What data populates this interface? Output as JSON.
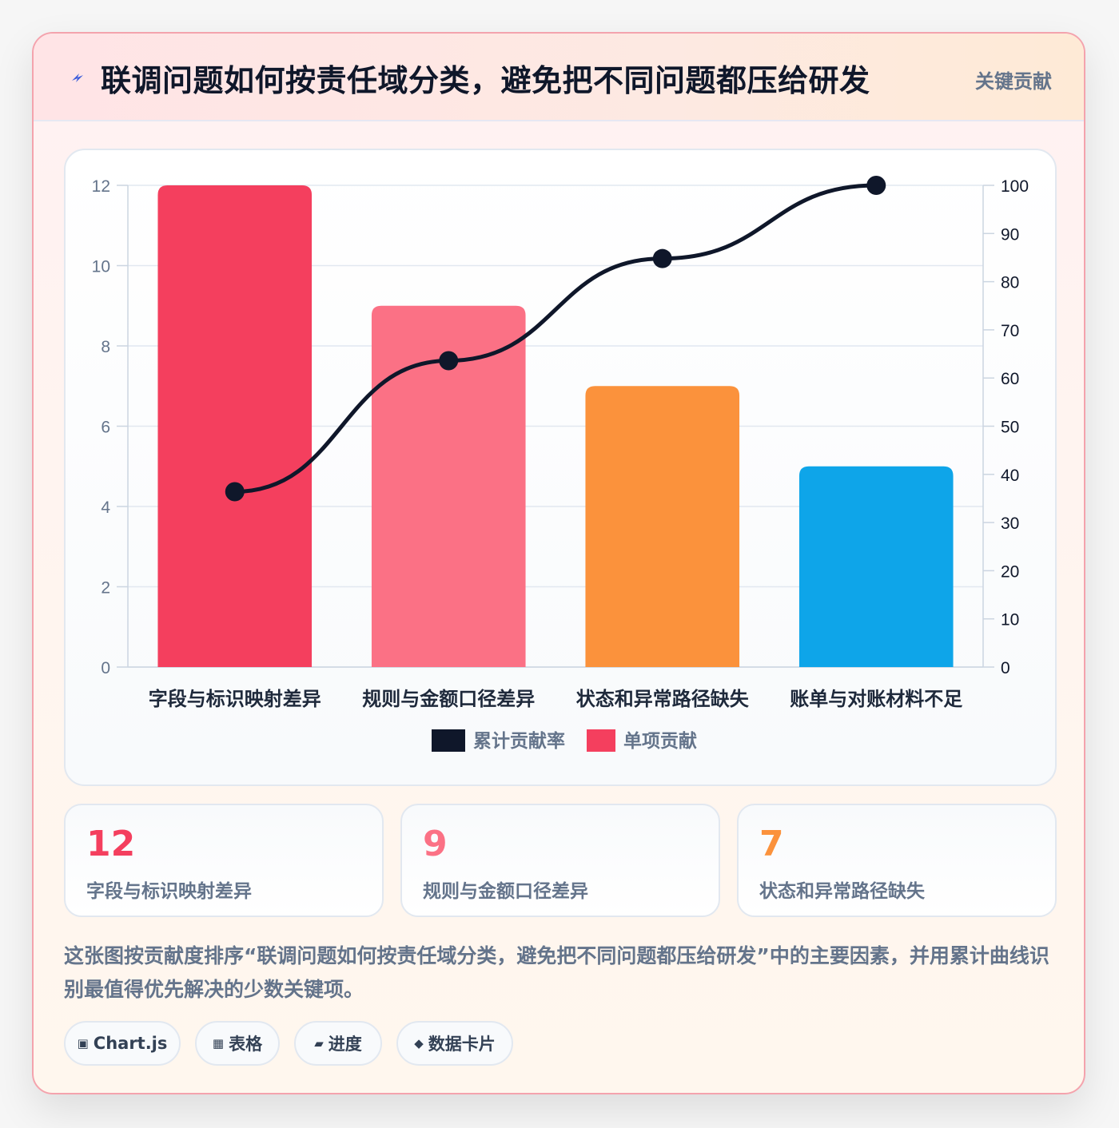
{
  "header": {
    "icon": "lightning-bolt-icon",
    "title": "联调问题如何按责任域分类，避免把不同问题都压给研发",
    "badge": "关键贡献"
  },
  "chart_data": {
    "type": "bar",
    "categories": [
      "字段与标识映射差异",
      "规则与金额口径差异",
      "状态和异常路径缺失",
      "账单与对账材料不足"
    ],
    "series": [
      {
        "name": "单项贡献",
        "type": "bar",
        "axis": "left",
        "values": [
          12,
          9,
          7,
          5
        ],
        "colors": [
          "#f43f5e",
          "#fb7185",
          "#fb923c",
          "#0ea5e9"
        ]
      },
      {
        "name": "累计贡献率",
        "type": "line",
        "axis": "right",
        "values": [
          36.4,
          63.6,
          84.8,
          100
        ],
        "color": "#0f172a"
      }
    ],
    "y_left": {
      "min": 0,
      "max": 12,
      "ticks": [
        "0",
        "2",
        "4",
        "6",
        "8",
        "10",
        "12"
      ]
    },
    "y_right": {
      "min": 0,
      "max": 100,
      "ticks": [
        "0",
        "10",
        "20",
        "30",
        "40",
        "50",
        "60",
        "70",
        "80",
        "90",
        "100"
      ]
    },
    "legend": {
      "placement": "bottom",
      "items": [
        {
          "label": "累计贡献率",
          "color": "#0f172a"
        },
        {
          "label": "单项贡献",
          "color": "#f43f5e"
        }
      ]
    },
    "grid": true
  },
  "stats": [
    {
      "value": "12",
      "label": "字段与标识映射差异",
      "color": "#f43f5e"
    },
    {
      "value": "9",
      "label": "规则与金额口径差异",
      "color": "#fb7185"
    },
    {
      "value": "7",
      "label": "状态和异常路径缺失",
      "color": "#fb923c"
    }
  ],
  "description": "这张图按贡献度排序“联调问题如何按责任域分类，避免把不同问题都压给研发”中的主要因素，并用累计曲线识别最值得优先解决的少数关键项。",
  "tags": [
    {
      "icon": "▣",
      "label": "Chart.js"
    },
    {
      "icon": "▦",
      "label": "表格"
    },
    {
      "icon": "▰",
      "label": "进度"
    },
    {
      "icon": "◆",
      "label": "数据卡片"
    }
  ]
}
